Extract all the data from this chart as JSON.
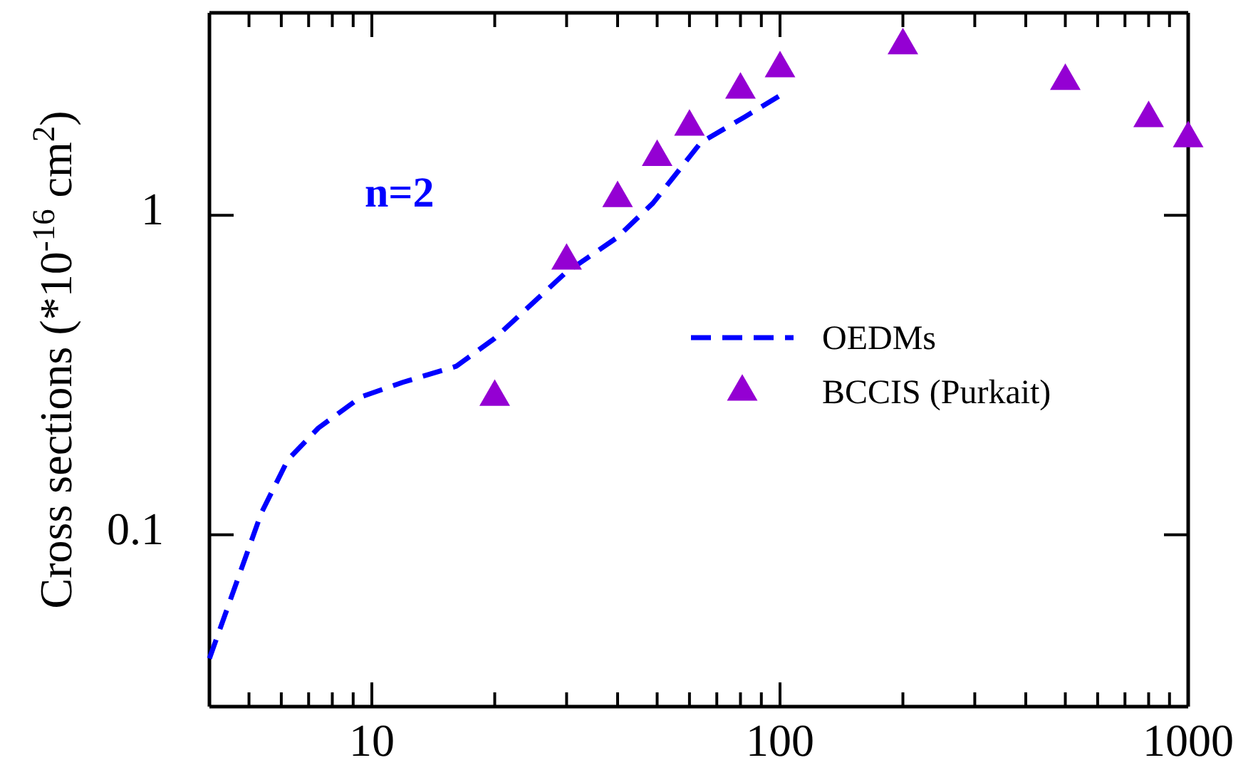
{
  "chart_data": {
    "type": "scatter",
    "ylabel": "Cross sections (*10$^{-16}$ cm$^{2}$)",
    "log": "xy",
    "grid": false,
    "legend": "right",
    "annotations": [
      "n=2"
    ],
    "xlim": [
      4,
      1000
    ],
    "ylim": [
      0.029,
      4.3
    ],
    "xticks": [
      {
        "value": 4,
        "label": null
      },
      {
        "value": 5,
        "label": null
      },
      {
        "value": 6,
        "label": null
      },
      {
        "value": 7,
        "label": null
      },
      {
        "value": 8,
        "label": null
      },
      {
        "value": 9,
        "label": null
      },
      10,
      {
        "value": 20,
        "label": null
      },
      {
        "value": 30,
        "label": null
      },
      {
        "value": 40,
        "label": null
      },
      {
        "value": 50,
        "label": null
      },
      {
        "value": 60,
        "label": null
      },
      {
        "value": 70,
        "label": null
      },
      {
        "value": 80,
        "label": null
      },
      {
        "value": 90,
        "label": null
      },
      100,
      {
        "value": 200,
        "label": null
      },
      {
        "value": 300,
        "label": null
      },
      {
        "value": 400,
        "label": null
      },
      {
        "value": 500,
        "label": null
      },
      {
        "value": 600,
        "label": null
      },
      {
        "value": 700,
        "label": null
      },
      {
        "value": 800,
        "label": null
      },
      {
        "value": 900,
        "label": null
      },
      1000
    ],
    "yticks": [
      0.1,
      1
    ],
    "series": [
      {
        "name": "OEDMs",
        "type": "line",
        "line_style": "dashed",
        "marker": "none",
        "color": "#0000ff",
        "x": [
          4.0,
          5.36,
          6.23,
          7.4,
          9.4,
          11.9,
          16.1,
          19.9,
          29.8,
          39.8,
          48.8,
          64,
          81.9,
          100
        ],
        "values": [
          0.041,
          0.117,
          0.172,
          0.216,
          0.27,
          0.3,
          0.337,
          0.41,
          0.66,
          0.85,
          1.09,
          1.69,
          2.03,
          2.37
        ]
      },
      {
        "name": "BCCIS (Purkait)",
        "type": "scatter",
        "marker": "triangle",
        "color": "#9400d3",
        "x": [
          20,
          30,
          40,
          50,
          60,
          80,
          100,
          200,
          500,
          800,
          1000
        ],
        "values": [
          0.27,
          0.72,
          1.13,
          1.52,
          1.89,
          2.47,
          2.88,
          3.4,
          2.63,
          2.01,
          1.74
        ]
      }
    ]
  }
}
